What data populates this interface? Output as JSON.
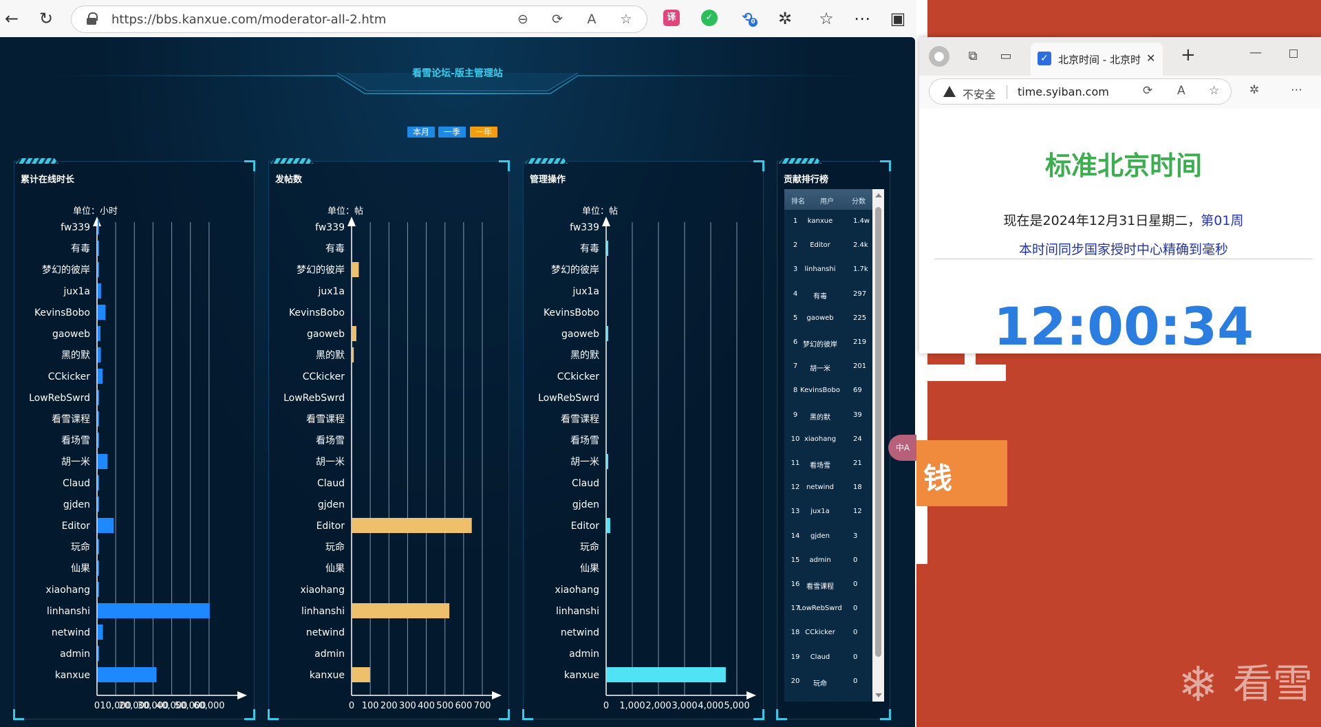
{
  "left_browser": {
    "url": "https://bbs.kanxue.com/moderator-all-2.htm",
    "extensions": [
      "translate-icon",
      "wechat-icon",
      "sync-icon"
    ],
    "sync_badge": "0"
  },
  "dashboard": {
    "title": "看雪论坛-版主管理站",
    "tabs": [
      {
        "label": "本月",
        "color": "#1e88e5"
      },
      {
        "label": "一季",
        "color": "#1e88e5"
      },
      {
        "label": "一年",
        "color": "#f39c12"
      }
    ],
    "users": [
      "fw339",
      "有毒",
      "梦幻的彼岸",
      "jux1a",
      "KevinsBobo",
      "gaoweb",
      "黑的默",
      "CCkicker",
      "LowRebSwrd",
      "看雪课程",
      "看场雪",
      "胡一米",
      "Claud",
      "gjden",
      "Editor",
      "玩命",
      "仙果",
      "xiaohang",
      "linhanshi",
      "netwind",
      "admin",
      "kanxue"
    ]
  },
  "chart_data": [
    {
      "type": "bar",
      "title": "累计在线时长",
      "unit_label": "单位：小时",
      "color": "#1e88ff",
      "ticks": [
        0,
        10000,
        20000,
        30000,
        40000,
        50000,
        60000
      ],
      "tick_labels": [
        "0",
        "10,000",
        "20,000",
        "30,000",
        "40,000",
        "50,000",
        "60,000"
      ],
      "xlim": [
        0,
        70000
      ],
      "values": [
        200,
        300,
        500,
        1800,
        4200,
        1500,
        1700,
        2600,
        700,
        150,
        200,
        5300,
        200,
        400,
        8600,
        300,
        600,
        400,
        60000,
        2800,
        300,
        31500
      ]
    },
    {
      "type": "bar",
      "title": "发帖数",
      "unit_label": "单位：帖",
      "color": "#eec06b",
      "ticks": [
        0,
        100,
        200,
        300,
        400,
        500,
        600,
        700
      ],
      "tick_labels": [
        "0",
        "100",
        "200",
        "300",
        "400",
        "500",
        "600",
        "700"
      ],
      "xlim": [
        0,
        700
      ],
      "values": [
        0,
        0,
        35,
        0,
        0,
        22,
        8,
        0,
        0,
        0,
        0,
        0,
        0,
        0,
        640,
        0,
        0,
        0,
        520,
        0,
        0,
        95
      ]
    },
    {
      "type": "bar",
      "title": "管理操作",
      "unit_label": "单位：帖",
      "color": "#4fe3f5",
      "ticks": [
        0,
        1000,
        2000,
        3000,
        4000,
        5000
      ],
      "tick_labels": [
        "0",
        "1,000",
        "2,000",
        "3,000",
        "4,000",
        "5,000"
      ],
      "xlim": [
        0,
        5000
      ],
      "values": [
        0,
        50,
        0,
        0,
        0,
        25,
        0,
        0,
        0,
        0,
        0,
        30,
        0,
        0,
        130,
        0,
        0,
        0,
        0,
        0,
        0,
        4550
      ]
    }
  ],
  "ranking": {
    "title": "贡献排行榜",
    "headers": [
      "排名",
      "用户",
      "分数"
    ],
    "rows": [
      [
        "1",
        "kanxue",
        "1.4w"
      ],
      [
        "2",
        "Editor",
        "2.4k"
      ],
      [
        "3",
        "linhanshi",
        "1.7k"
      ],
      [
        "4",
        "有毒",
        "297"
      ],
      [
        "5",
        "gaoweb",
        "225"
      ],
      [
        "6",
        "梦幻的彼岸",
        "219"
      ],
      [
        "7",
        "胡一米",
        "201"
      ],
      [
        "8",
        "KevinsBobo",
        "69"
      ],
      [
        "9",
        "黑的默",
        "39"
      ],
      [
        "10",
        "xiaohang",
        "24"
      ],
      [
        "11",
        "看场雪",
        "21"
      ],
      [
        "12",
        "netwind",
        "18"
      ],
      [
        "13",
        "jux1a",
        "12"
      ],
      [
        "14",
        "gjden",
        "3"
      ],
      [
        "15",
        "admin",
        "0"
      ],
      [
        "16",
        "看雪课程",
        "0"
      ],
      [
        "17",
        "LowRebSwrd",
        "0"
      ],
      [
        "18",
        "CCkicker",
        "0"
      ],
      [
        "19",
        "Claud",
        "0"
      ],
      [
        "20",
        "玩命",
        "0"
      ]
    ]
  },
  "popup": {
    "tab_title": "北京时间 - 北京时间",
    "insecure_label": "不安全",
    "url": "time.syiban.com",
    "heading": "标准北京时间",
    "date_text": "现在是2024年12月31日星期二，",
    "week_text": "第01周",
    "sync_text": "本时间同步国家授时中心精确到毫秒",
    "time": "12:00:34"
  },
  "background": {
    "orange_text": "钱",
    "logo_text": "看雪"
  },
  "float_translate": "中A"
}
